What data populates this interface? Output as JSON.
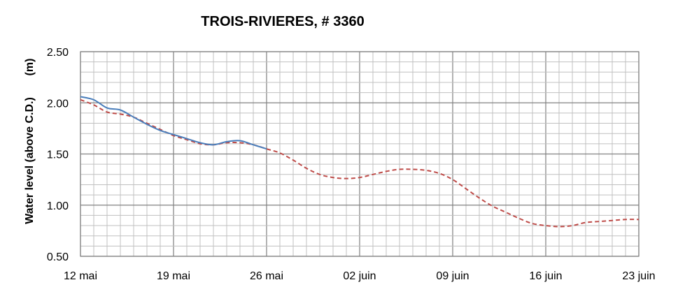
{
  "chart_data": {
    "type": "line",
    "title": "TROIS-RIVIERES, # 3360",
    "ylabel": "Water level (above C.D.)",
    "yunit": "(m)",
    "xlabel": "",
    "ylim": [
      0.5,
      2.5
    ],
    "yticks": [
      "0.50",
      "1.00",
      "1.50",
      "2.00",
      "2.50"
    ],
    "xlim": [
      "12 mai",
      "23 juin"
    ],
    "xticks": [
      "12 mai",
      "19 mai",
      "26 mai",
      "02 juin",
      "09 juin",
      "16 juin",
      "23 juin"
    ],
    "grid": true,
    "legend": "none",
    "colors": {
      "observed": "#4a7ebb",
      "predicted": "#be4b48",
      "grid_minor": "#c0c0c0",
      "grid_major": "#808080"
    },
    "series": [
      {
        "style": "solid",
        "color": "#4a7ebb",
        "x": [
          "12 mai",
          "13 mai",
          "14 mai",
          "15 mai",
          "16 mai",
          "17 mai",
          "18 mai",
          "19 mai",
          "20 mai",
          "21 mai",
          "22 mai",
          "23 mai",
          "24 mai",
          "25 mai",
          "26 mai"
        ],
        "values": [
          2.06,
          2.03,
          1.95,
          1.93,
          1.86,
          1.79,
          1.73,
          1.69,
          1.65,
          1.61,
          1.59,
          1.62,
          1.63,
          1.59,
          1.55
        ]
      },
      {
        "style": "dashed",
        "color": "#be4b48",
        "x": [
          "12 mai",
          "13 mai",
          "14 mai",
          "15 mai",
          "16 mai",
          "17 mai",
          "18 mai",
          "19 mai",
          "20 mai",
          "21 mai",
          "22 mai",
          "23 mai",
          "24 mai",
          "25 mai",
          "26 mai",
          "27 mai",
          "28 mai",
          "29 mai",
          "30 mai",
          "31 mai",
          "01 juin",
          "02 juin",
          "03 juin",
          "04 juin",
          "05 juin",
          "06 juin",
          "07 juin",
          "08 juin",
          "09 juin",
          "10 juin",
          "11 juin",
          "12 juin",
          "13 juin",
          "14 juin",
          "15 juin",
          "16 juin",
          "17 juin",
          "18 juin",
          "19 juin",
          "20 juin",
          "21 juin",
          "22 juin",
          "23 juin"
        ],
        "values": [
          2.03,
          1.98,
          1.91,
          1.89,
          1.86,
          1.8,
          1.74,
          1.68,
          1.64,
          1.6,
          1.59,
          1.61,
          1.61,
          1.59,
          1.55,
          1.51,
          1.44,
          1.36,
          1.3,
          1.27,
          1.26,
          1.27,
          1.3,
          1.33,
          1.35,
          1.35,
          1.34,
          1.31,
          1.25,
          1.16,
          1.07,
          0.99,
          0.93,
          0.87,
          0.82,
          0.8,
          0.79,
          0.8,
          0.83,
          0.84,
          0.85,
          0.86,
          0.86
        ]
      }
    ]
  }
}
